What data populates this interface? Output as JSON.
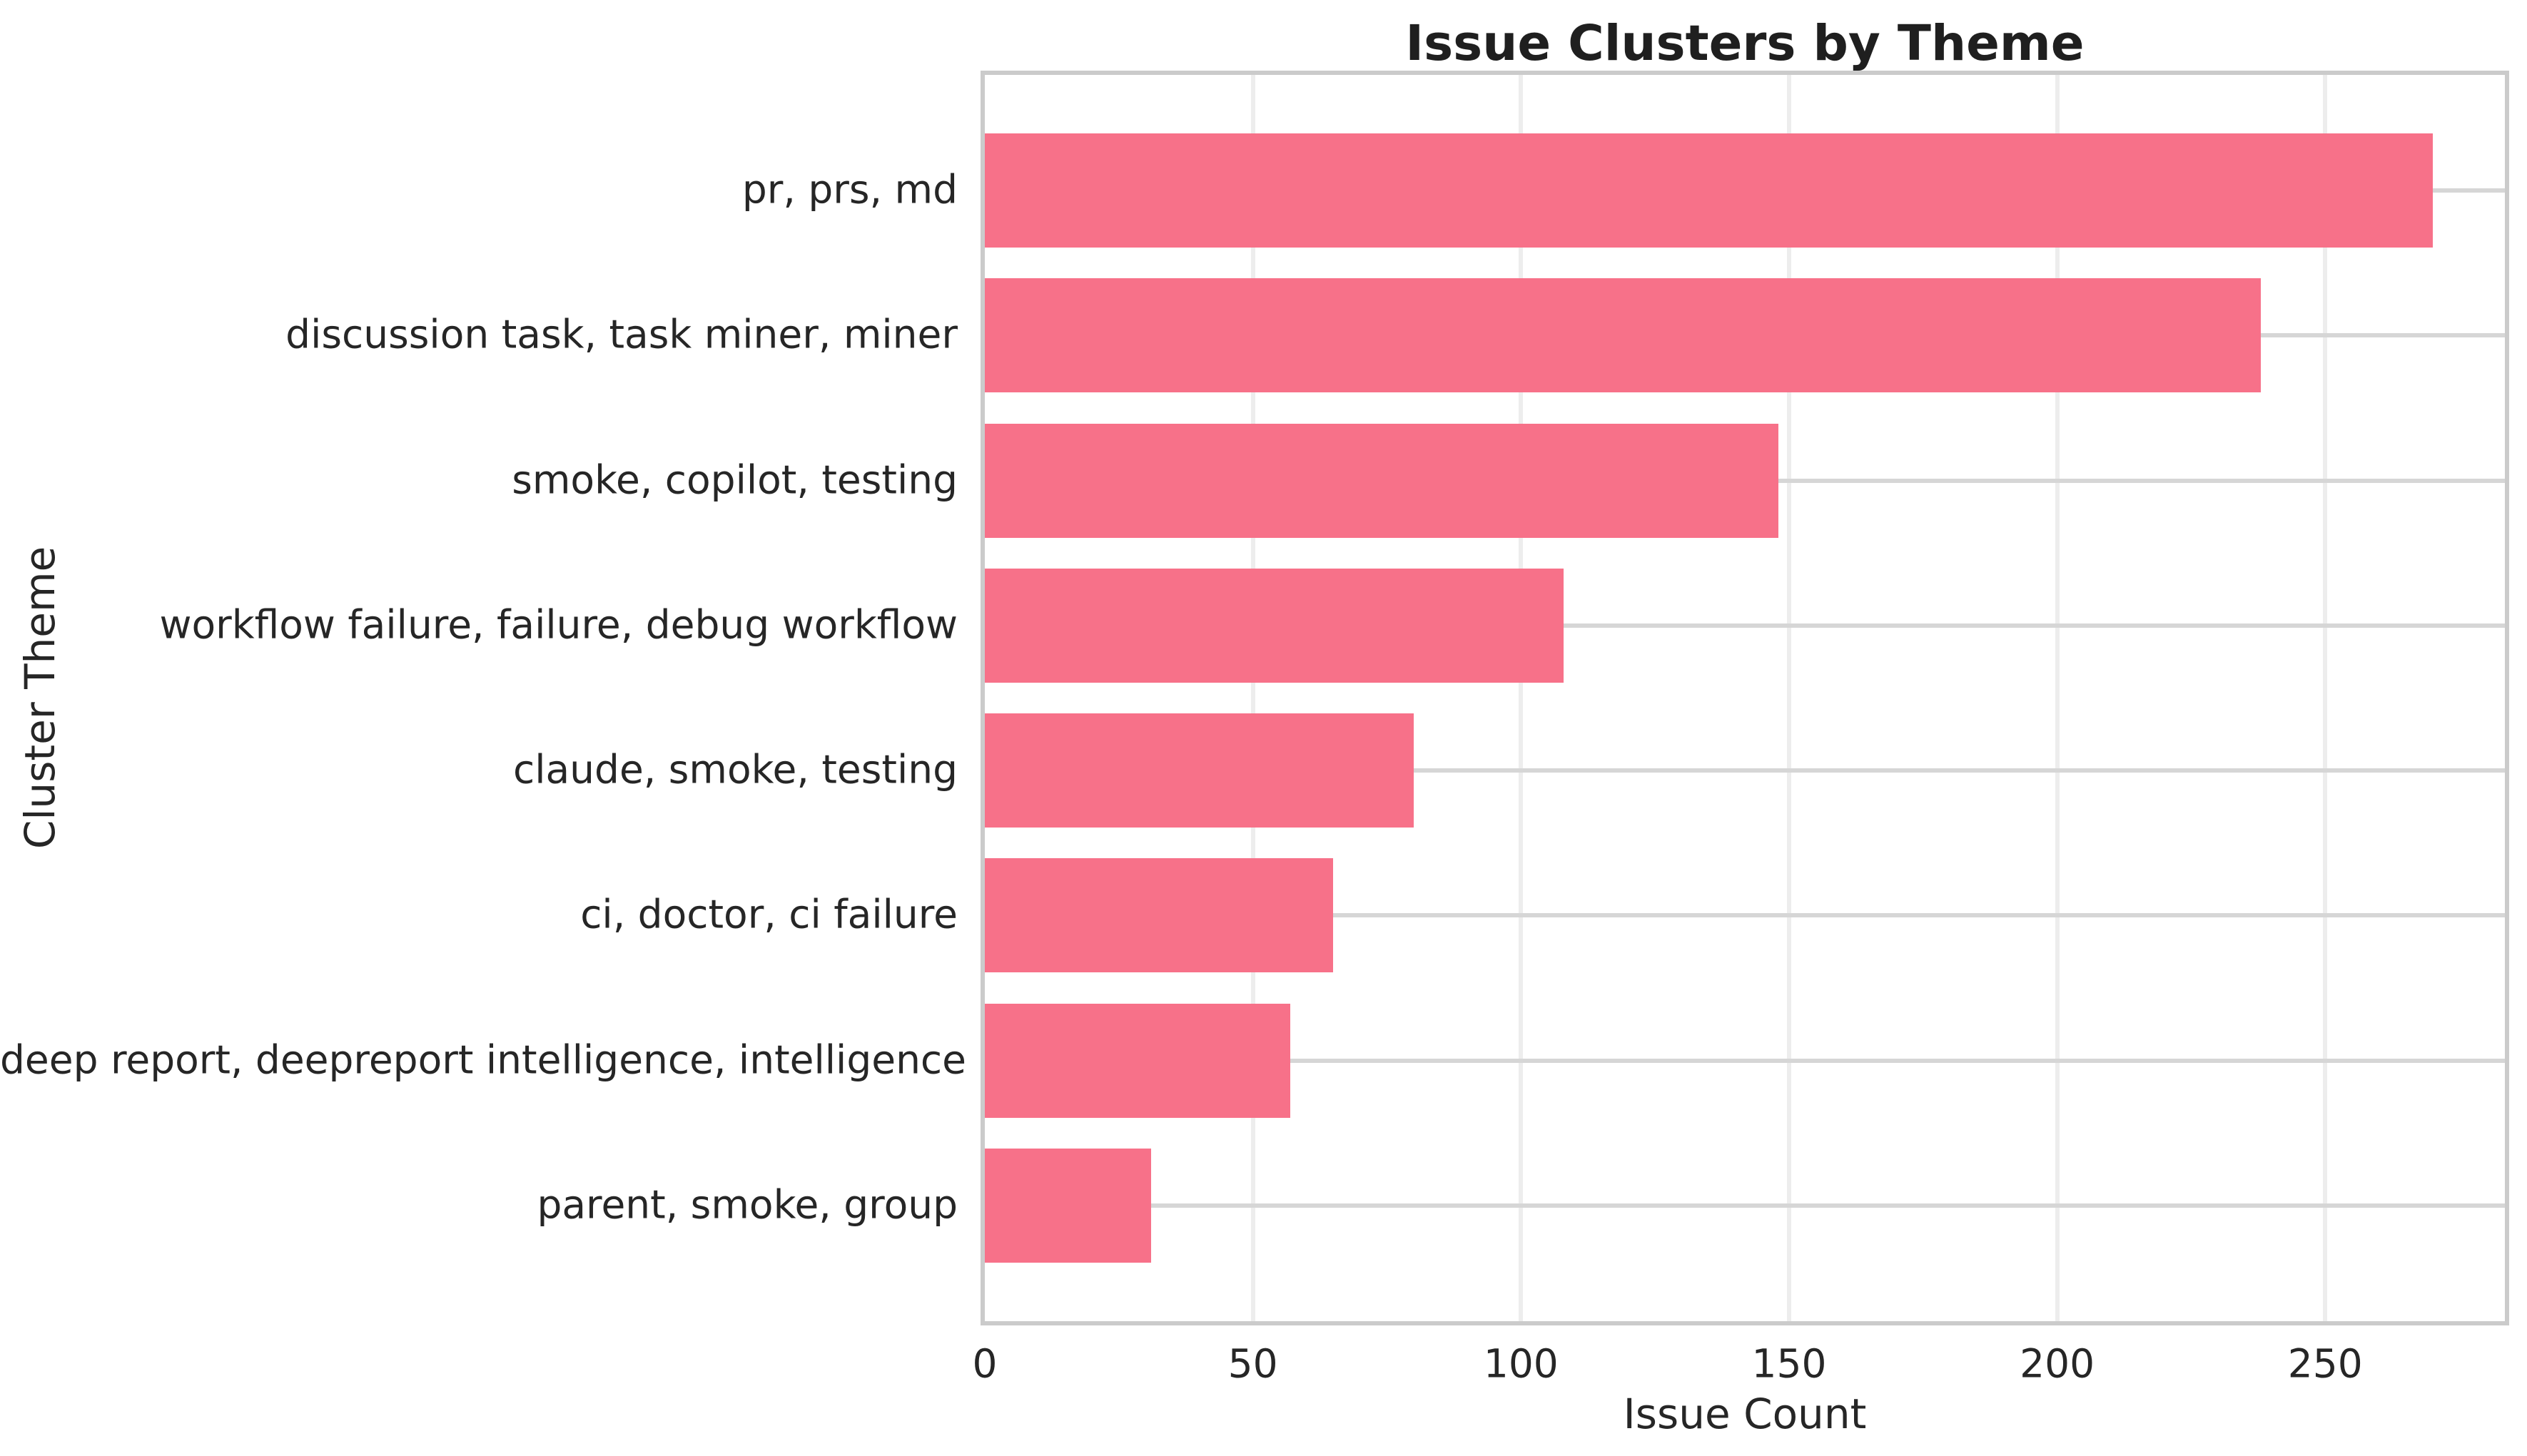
{
  "chart_data": {
    "type": "bar",
    "orientation": "horizontal",
    "title": "Issue Clusters by Theme",
    "xlabel": "Issue Count",
    "ylabel": "Cluster Theme",
    "categories": [
      "pr, prs, md",
      "discussion task, task miner, miner",
      "smoke, copilot, testing",
      "workflow failure, failure, debug workflow",
      "claude, smoke, testing",
      "ci, doctor, ci failure",
      "deep report, deepreport intelligence, intelligence",
      "parent, smoke, group"
    ],
    "values": [
      270,
      238,
      148,
      108,
      80,
      65,
      57,
      31
    ],
    "xticks": [
      0,
      50,
      100,
      150,
      200,
      250
    ],
    "xlim": [
      0,
      283.5
    ],
    "grid": true,
    "legend": "none",
    "colors": {
      "bar": "#f77189",
      "grid_vertical": "#ededed",
      "grid_horizontal": "#d6d6d6",
      "spine": "#cbcbcb",
      "text": "#262626",
      "title_text": "#1f1f1f"
    }
  }
}
